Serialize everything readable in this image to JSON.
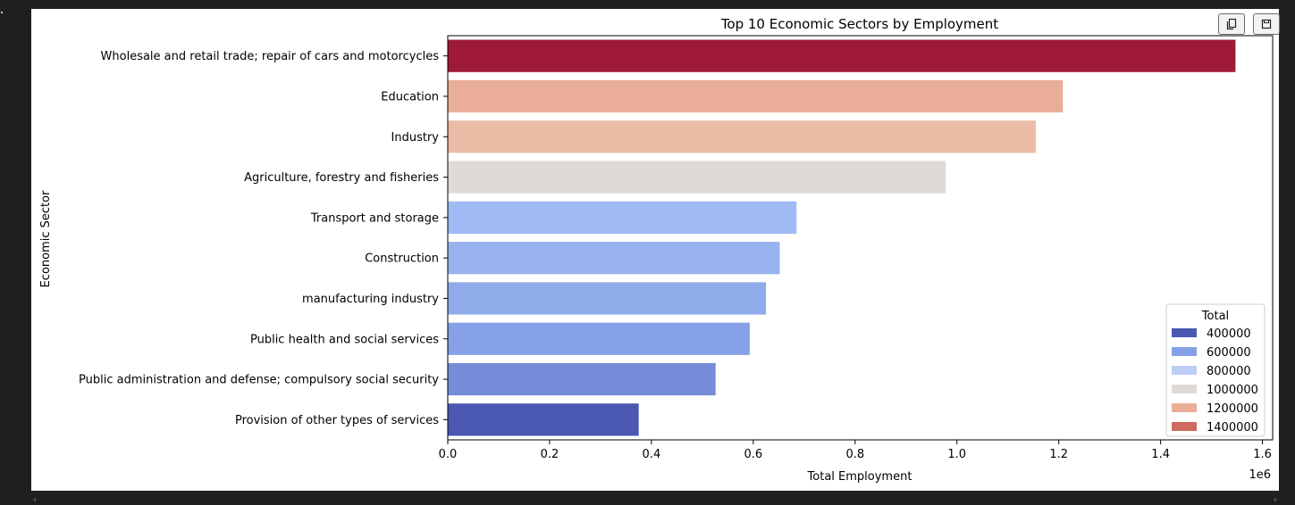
{
  "toolbar": {
    "copy_icon": "copy-icon",
    "save_icon": "save-icon"
  },
  "chart_data": {
    "type": "bar",
    "orientation": "horizontal",
    "title": "Top 10 Economic Sectors by Employment",
    "xlabel": "Total Employment",
    "ylabel": "Economic Sector",
    "x_offset_label": "1e6",
    "xlim": [
      0,
      1.62
    ],
    "x_ticks": [
      0.0,
      0.2,
      0.4,
      0.6,
      0.8,
      1.0,
      1.2,
      1.4,
      1.6
    ],
    "x_tick_labels": [
      "0.0",
      "0.2",
      "0.4",
      "0.6",
      "0.8",
      "1.0",
      "1.2",
      "1.4",
      "1.6"
    ],
    "grid": false,
    "categories": [
      "Wholesale and retail trade; repair of cars and motorcycles",
      "Education",
      "Industry",
      "Agriculture, forestry and fisheries",
      "Transport and storage",
      "Construction",
      "manufacturing industry",
      "Public health and social services",
      "Public administration and defense; compulsory social security",
      "Provision of other types of services"
    ],
    "values": [
      1547000,
      1208000,
      1155000,
      978000,
      685000,
      652000,
      625000,
      593000,
      526000,
      375000
    ],
    "bar_colors": [
      "#9e1a36",
      "#eaae98",
      "#ebbca6",
      "#dedbd7",
      "#a0bbf3",
      "#97b2ee",
      "#8fabea",
      "#86a0e7",
      "#768dda",
      "#4a58b2"
    ],
    "legend": {
      "title": "Total",
      "placement": "lower-right",
      "entries": [
        {
          "label": "400000",
          "color": "#4a58b2"
        },
        {
          "label": "600000",
          "color": "#86a0e7"
        },
        {
          "label": "800000",
          "color": "#bccef6"
        },
        {
          "label": "1000000",
          "color": "#dedbd7"
        },
        {
          "label": "1200000",
          "color": "#eaae98"
        },
        {
          "label": "1400000",
          "color": "#cd6b5e"
        }
      ]
    }
  }
}
